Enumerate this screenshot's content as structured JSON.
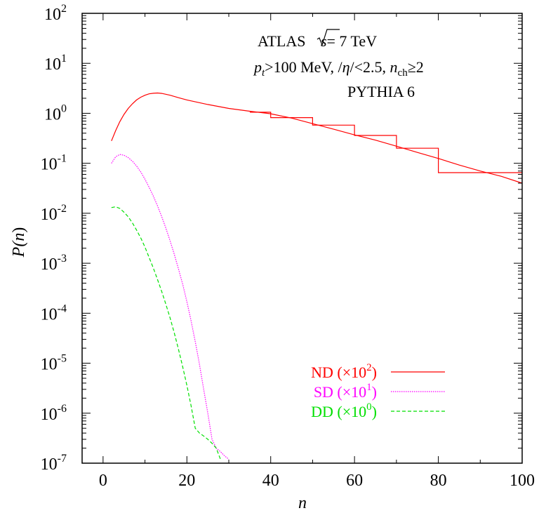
{
  "chart_data": {
    "type": "line",
    "log_y": true,
    "xlim": [
      -5,
      100
    ],
    "ylim_exp": [
      -7,
      2
    ],
    "x_ticks": [
      0,
      20,
      40,
      60,
      80,
      100
    ],
    "x_tick_labels": [
      "0",
      "20",
      "40",
      "60",
      "80",
      "100"
    ],
    "y_tick_exponents": [
      -7,
      -6,
      -5,
      -4,
      -3,
      -2,
      -1,
      0,
      1,
      2
    ],
    "y_tick_base": "10",
    "y_tick_labels": [
      "-7",
      "-6",
      "-5",
      "-4",
      "-3",
      "-2",
      "-1",
      "0",
      "1",
      "2"
    ],
    "xlabel": "n",
    "ylabel": {
      "main": "P(",
      "var": "n",
      "close": ")"
    },
    "annotations": {
      "line1": {
        "text": "ATLAS ",
        "sqrt": "s",
        "after": "= 7 TeV"
      },
      "line2": {
        "p": "p",
        "t": "t",
        "a": ">100 MeV, /",
        "eta": "η",
        "b": "/<2.5, ",
        "n": "n",
        "ch": "ch",
        "c": "≥2"
      },
      "line3": "PYTHIA 6"
    },
    "legend_position": "bottom-right",
    "series": [
      {
        "name": "ND",
        "scale_base": "10",
        "scale_exp": "2",
        "color": "#ff0000",
        "style": "solid",
        "x": [
          2,
          3,
          4,
          5,
          6,
          7,
          8,
          9,
          10,
          11,
          12,
          13,
          14,
          16,
          18,
          20,
          25,
          30,
          35,
          40,
          45,
          50,
          55,
          60,
          65,
          70,
          75,
          80,
          85,
          90,
          95,
          100
        ],
        "y": [
          0.28,
          0.45,
          0.68,
          0.95,
          1.25,
          1.55,
          1.85,
          2.1,
          2.3,
          2.45,
          2.52,
          2.55,
          2.5,
          2.3,
          2.05,
          1.85,
          1.5,
          1.25,
          1.1,
          0.98,
          0.8,
          0.62,
          0.48,
          0.37,
          0.29,
          0.22,
          0.165,
          0.125,
          0.092,
          0.07,
          0.055,
          0.04
        ]
      },
      {
        "name": "SD",
        "scale_base": "10",
        "scale_exp": "1",
        "color": "#ff00ff",
        "style": "dotted",
        "x": [
          2,
          3,
          4,
          5,
          6,
          7,
          8,
          9,
          10,
          11,
          12,
          13,
          14,
          15,
          16,
          17,
          18,
          19,
          20,
          21,
          22,
          23,
          24,
          25,
          26,
          27,
          28,
          29,
          30
        ],
        "y": [
          0.1,
          0.135,
          0.15,
          0.145,
          0.13,
          0.11,
          0.088,
          0.067,
          0.048,
          0.033,
          0.022,
          0.014,
          0.0085,
          0.005,
          0.0028,
          0.0015,
          0.00077,
          0.00038,
          0.00017,
          7e-05,
          2.7e-05,
          9.5e-06,
          3e-06,
          1e-06,
          3e-07,
          2e-07,
          1.7e-07,
          1.4e-07,
          1.2e-07
        ]
      },
      {
        "name": "DD",
        "scale_base": "10",
        "scale_exp": "0",
        "color": "#00e000",
        "style": "dashed",
        "x": [
          2,
          3,
          4,
          5,
          6,
          7,
          8,
          9,
          10,
          11,
          12,
          13,
          14,
          15,
          16,
          17,
          18,
          19,
          20,
          21,
          22,
          23,
          24,
          25,
          26,
          27,
          28
        ],
        "y": [
          0.013,
          0.0135,
          0.0125,
          0.0105,
          0.0085,
          0.0064,
          0.0046,
          0.0032,
          0.0021,
          0.0013,
          0.0008,
          0.00047,
          0.00027,
          0.00015,
          8e-05,
          4e-05,
          1.9e-05,
          8.5e-06,
          3.6e-06,
          1.4e-06,
          5e-07,
          4e-07,
          3.5e-07,
          3e-07,
          2.5e-07,
          2e-07,
          1.2e-07
        ]
      }
    ],
    "data_histogram": {
      "name": "ND",
      "color": "#ff0000",
      "edges": [
        35,
        40,
        50,
        60,
        70,
        80,
        100
      ],
      "values": [
        1.05,
        0.82,
        0.58,
        0.36,
        0.2,
        0.065
      ]
    }
  }
}
